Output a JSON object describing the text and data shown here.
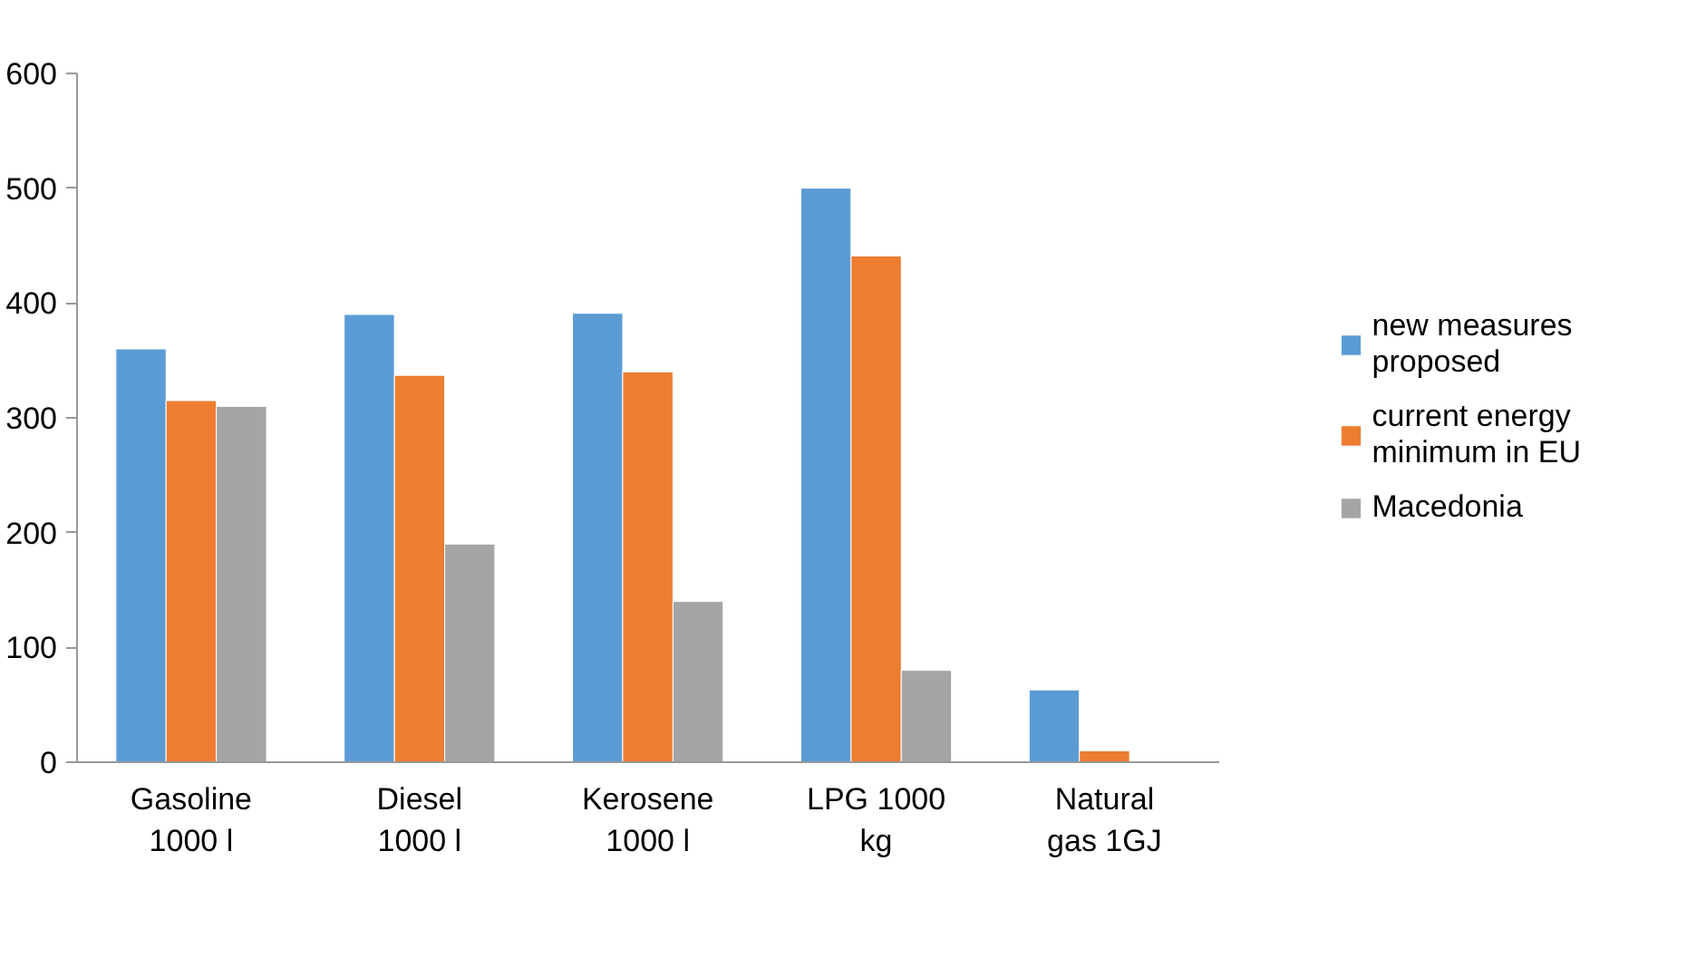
{
  "chart_data": {
    "type": "bar",
    "categories": [
      "Gasoline 1000 l",
      "Diesel 1000 l",
      "Kerosene 1000 l",
      "LPG 1000 kg",
      "Natural gas 1GJ"
    ],
    "series": [
      {
        "name": "new measures proposed",
        "color": "#5b9bd5",
        "values": [
          360,
          390,
          391,
          500,
          63
        ]
      },
      {
        "name": "current energy minimum in EU",
        "color": "#ed7d31",
        "values": [
          315,
          337,
          340,
          441,
          10
        ]
      },
      {
        "name": "Macedonia",
        "color": "#a5a5a5",
        "values": [
          310,
          190,
          140,
          80,
          null
        ]
      }
    ],
    "ylim": [
      0,
      600
    ],
    "yticks": [
      0,
      100,
      200,
      300,
      400,
      500,
      600
    ],
    "grid": false,
    "legend": "right"
  }
}
